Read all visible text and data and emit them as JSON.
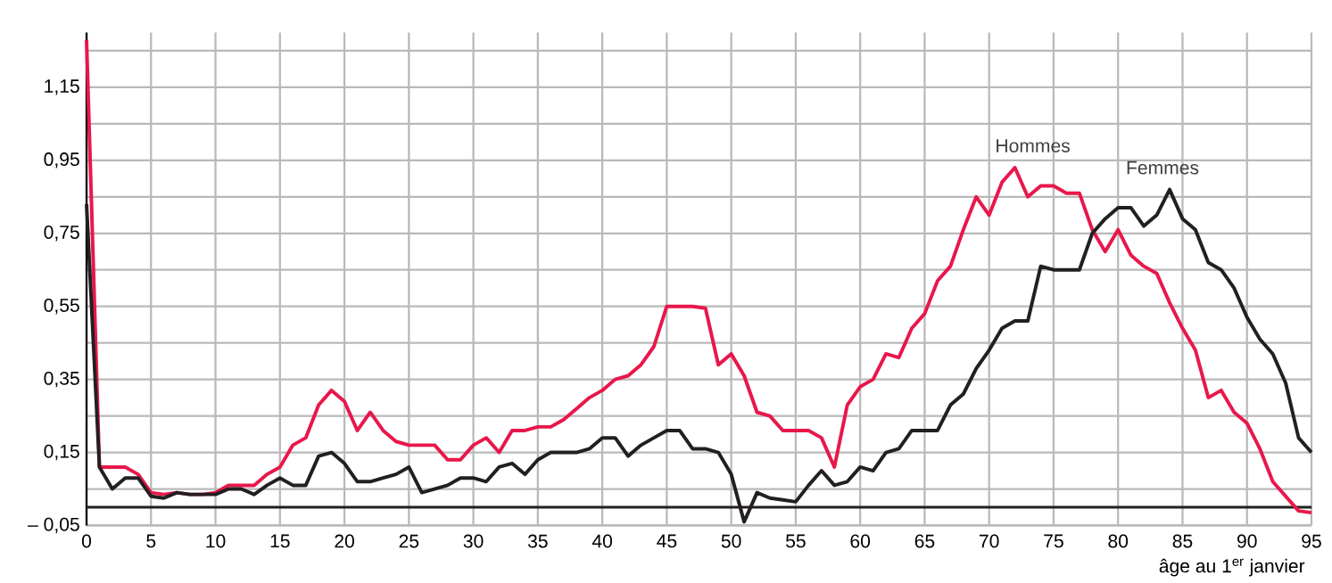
{
  "chart_data": {
    "type": "line",
    "xlabel": "âge au 1$^{er}$ janvier",
    "x": [
      0,
      1,
      2,
      3,
      4,
      5,
      6,
      7,
      8,
      9,
      10,
      11,
      12,
      13,
      14,
      15,
      16,
      17,
      18,
      19,
      20,
      21,
      22,
      23,
      24,
      25,
      26,
      27,
      28,
      29,
      30,
      31,
      32,
      33,
      34,
      35,
      36,
      37,
      38,
      39,
      40,
      41,
      42,
      43,
      44,
      45,
      46,
      47,
      48,
      49,
      50,
      51,
      52,
      53,
      54,
      55,
      56,
      57,
      58,
      59,
      60,
      61,
      62,
      63,
      64,
      65,
      66,
      67,
      68,
      69,
      70,
      71,
      72,
      73,
      74,
      75,
      76,
      77,
      78,
      79,
      80,
      81,
      82,
      83,
      84,
      85,
      86,
      87,
      88,
      89,
      90,
      91,
      92,
      93,
      94,
      95
    ],
    "series": [
      {
        "name": "Hommes",
        "color": "#e8174a",
        "values": [
          1.28,
          0.11,
          0.11,
          0.11,
          0.09,
          0.04,
          0.035,
          0.04,
          0.035,
          0.035,
          0.04,
          0.06,
          0.06,
          0.06,
          0.09,
          0.11,
          0.17,
          0.19,
          0.28,
          0.32,
          0.29,
          0.21,
          0.26,
          0.21,
          0.18,
          0.17,
          0.17,
          0.17,
          0.13,
          0.13,
          0.17,
          0.19,
          0.15,
          0.21,
          0.21,
          0.22,
          0.22,
          0.24,
          0.27,
          0.3,
          0.32,
          0.35,
          0.36,
          0.39,
          0.44,
          0.55,
          0.55,
          0.55,
          0.545,
          0.39,
          0.42,
          0.36,
          0.26,
          0.25,
          0.21,
          0.21,
          0.21,
          0.19,
          0.11,
          0.28,
          0.33,
          0.35,
          0.42,
          0.41,
          0.49,
          0.53,
          0.62,
          0.66,
          0.76,
          0.85,
          0.8,
          0.89,
          0.93,
          0.85,
          0.88,
          0.88,
          0.86,
          0.86,
          0.76,
          0.7,
          0.76,
          0.69,
          0.66,
          0.64,
          0.56,
          0.49,
          0.43,
          0.3,
          0.32,
          0.26,
          0.23,
          0.16,
          0.07,
          0.03,
          -0.01,
          -0.015
        ]
      },
      {
        "name": "Femmes",
        "color": "#231f20",
        "values": [
          0.83,
          0.11,
          0.05,
          0.08,
          0.08,
          0.03,
          0.025,
          0.04,
          0.035,
          0.035,
          0.035,
          0.05,
          0.05,
          0.035,
          0.06,
          0.08,
          0.06,
          0.06,
          0.14,
          0.15,
          0.12,
          0.07,
          0.07,
          0.08,
          0.09,
          0.11,
          0.04,
          0.05,
          0.06,
          0.08,
          0.08,
          0.07,
          0.11,
          0.12,
          0.09,
          0.13,
          0.15,
          0.15,
          0.15,
          0.16,
          0.19,
          0.19,
          0.14,
          0.17,
          0.19,
          0.21,
          0.21,
          0.16,
          0.16,
          0.15,
          0.09,
          -0.04,
          0.04,
          0.025,
          0.02,
          0.015,
          0.06,
          0.1,
          0.06,
          0.07,
          0.11,
          0.1,
          0.15,
          0.16,
          0.21,
          0.21,
          0.21,
          0.28,
          0.31,
          0.38,
          0.43,
          0.49,
          0.51,
          0.51,
          0.66,
          0.65,
          0.65,
          0.65,
          0.75,
          0.79,
          0.82,
          0.82,
          0.77,
          0.8,
          0.87,
          0.79,
          0.76,
          0.67,
          0.65,
          0.6,
          0.52,
          0.46,
          0.42,
          0.34,
          0.19,
          0.15
        ]
      }
    ],
    "xlim": [
      0,
      95
    ],
    "ylim": [
      -0.05,
      1.3
    ],
    "xticks": [
      0,
      5,
      10,
      15,
      20,
      25,
      30,
      35,
      40,
      45,
      50,
      55,
      60,
      65,
      70,
      75,
      80,
      85,
      90,
      95
    ],
    "yticks": [
      {
        "value": -0.05,
        "label": "– 0,05"
      },
      {
        "value": 0.05,
        "label": null
      },
      {
        "value": 0.15,
        "label": "0,15"
      },
      {
        "value": 0.25,
        "label": null
      },
      {
        "value": 0.35,
        "label": "0,35"
      },
      {
        "value": 0.45,
        "label": null
      },
      {
        "value": 0.55,
        "label": "0,55"
      },
      {
        "value": 0.65,
        "label": null
      },
      {
        "value": 0.75,
        "label": "0,75"
      },
      {
        "value": 0.85,
        "label": null
      },
      {
        "value": 0.95,
        "label": "0,95"
      },
      {
        "value": 1.05,
        "label": null
      },
      {
        "value": 1.15,
        "label": "1,15"
      },
      {
        "value": 1.25,
        "label": null
      }
    ],
    "ref_lines": [
      {
        "axis": "y",
        "value": 0,
        "color": "#231f20"
      }
    ],
    "grid": true,
    "marker": "none",
    "line_style": "solid"
  }
}
